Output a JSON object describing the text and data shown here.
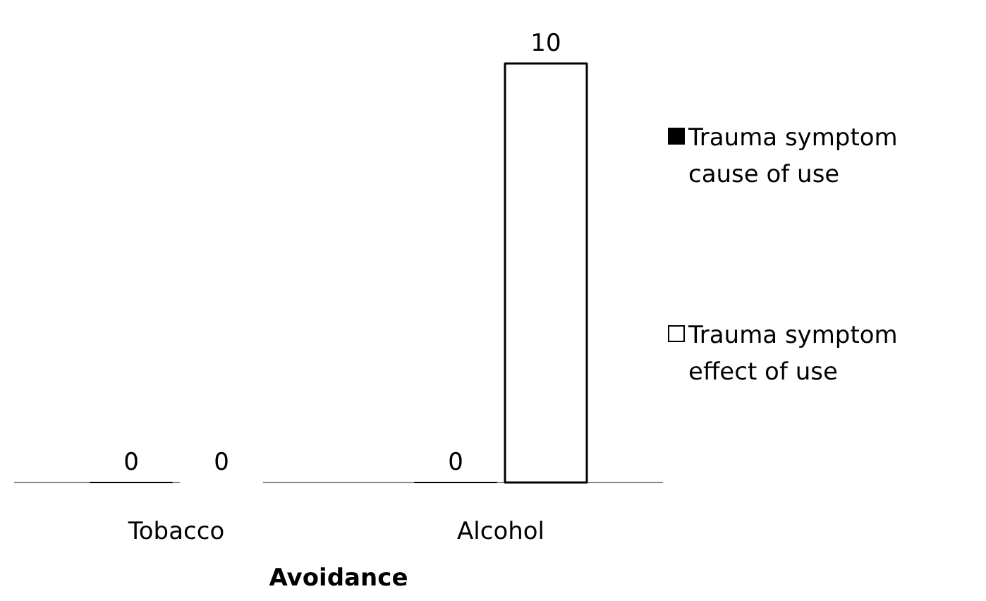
{
  "chart_data": {
    "type": "bar",
    "xlabel": "Avoidance",
    "categories": [
      "Tobacco",
      "Alcohol"
    ],
    "series": [
      {
        "name": "Trauma symptom cause of use",
        "color": "#000000",
        "values": [
          0,
          0
        ]
      },
      {
        "name": "Trauma symptom effect of use",
        "color": "#ffffff",
        "values": [
          0,
          10
        ]
      }
    ],
    "data_labels": true,
    "legend": "right"
  }
}
